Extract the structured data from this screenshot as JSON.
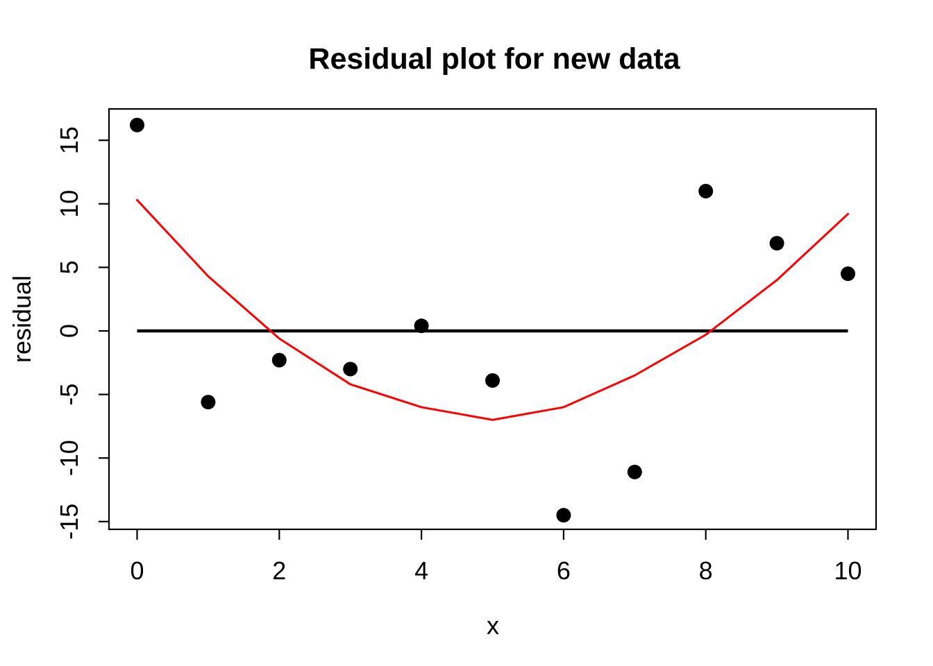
{
  "figure": {
    "background_color": "#FFFFFF",
    "foreground_color": "#000000"
  },
  "chart_data": {
    "type": "scatter",
    "title": "Residual plot for new data",
    "xlabel": "x",
    "ylabel": "residual",
    "xlim": [
      -0.4,
      10.4
    ],
    "ylim": [
      -15.6,
      17.5
    ],
    "x_ticks": [
      0,
      2,
      4,
      6,
      8,
      10
    ],
    "y_ticks": [
      -15,
      -10,
      -5,
      0,
      5,
      10,
      15
    ],
    "grid": false,
    "legend": null,
    "x": [
      0,
      1,
      2,
      3,
      4,
      5,
      6,
      7,
      8,
      9,
      10
    ],
    "series": [
      {
        "name": "residual-points",
        "type": "scatter",
        "marker": "filled-circle",
        "color": "#000000",
        "values": [
          16.2,
          -5.6,
          -2.3,
          -3.0,
          0.4,
          -3.9,
          -14.5,
          -11.1,
          11.0,
          6.9,
          4.5
        ]
      },
      {
        "name": "fitted-curve",
        "type": "line",
        "color": "#FF0000",
        "values": [
          10.3,
          4.3,
          -0.6,
          -4.2,
          -6.0,
          -7.0,
          -6.0,
          -3.5,
          -0.3,
          4.0,
          9.2
        ]
      },
      {
        "name": "zero-reference-line",
        "type": "line",
        "color": "#000000",
        "values": [
          0,
          0,
          0,
          0,
          0,
          0,
          0,
          0,
          0,
          0,
          0
        ]
      }
    ]
  }
}
